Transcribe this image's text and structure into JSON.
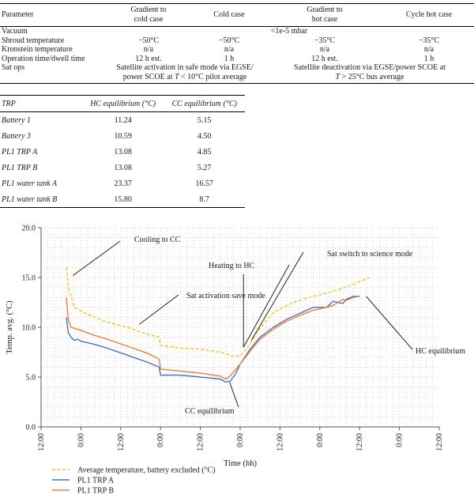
{
  "table1": {
    "headers": [
      "Parameter",
      "Gradient to\ncold case",
      "Cold case",
      "Gradient to\nhot case",
      "Cycle hot case"
    ],
    "vacuum": {
      "label": "Vacuum",
      "value": "<1e-5 mbar"
    },
    "rows": [
      {
        "label": "Shroud temperature",
        "cells": [
          "−50°C",
          "−50°C",
          "−35°C",
          "−35°C"
        ]
      },
      {
        "label": "Kronstein temperature",
        "cells": [
          "n/a",
          "n/a",
          "n/a",
          "n/a"
        ]
      },
      {
        "label": "Operation time/dwell time",
        "cells": [
          "12 h est.",
          "1 h",
          "12 h est.",
          "1 h"
        ]
      }
    ],
    "satops": {
      "label": "Sat ops",
      "cold_line1": "Satellite activation in safe mode via EGSE/",
      "cold_line2_a": "power SCOE  at ",
      "cold_line2_t": "T",
      "cold_line2_b": " < 10°C pilot average",
      "hot_line1": "Satellite deactivation via EGSE/power SCOE at",
      "hot_line2_t": "T",
      "hot_line2_b": " > 25°C bus average"
    }
  },
  "table2": {
    "headers": [
      "TRP",
      "HC equilibrium (°C)",
      "CC equilibrium (°C)"
    ],
    "rows": [
      {
        "name": "Battery 1",
        "hc": "11.24",
        "cc": "5.15"
      },
      {
        "name": "Battery 3",
        "hc": "10.59",
        "cc": "4.50"
      },
      {
        "name": "PL1 TRP A",
        "hc": "13.08",
        "cc": "4.85"
      },
      {
        "name": "PL1 TRP B",
        "hc": "13.08",
        "cc": "5.27"
      },
      {
        "name": "PL1 water tank A",
        "hc": "23.37",
        "cc": "16.57"
      },
      {
        "name": "PL1 water tank B",
        "hc": "15.80",
        "cc": "8.7"
      }
    ]
  },
  "chart_data": {
    "type": "line",
    "xlabel": "Time (hh)",
    "ylabel": "Temp. avg. (°C)",
    "ylim": [
      0,
      20
    ],
    "xlim": [
      0,
      60
    ],
    "yticks": [
      0,
      5,
      10,
      15,
      20
    ],
    "ytick_labels": [
      "0.0",
      "5.0",
      "10.0",
      "15.0",
      "20.0"
    ],
    "xticks": [
      0,
      6,
      12,
      18,
      24,
      30,
      36,
      42,
      48,
      54,
      60
    ],
    "xtick_labels": [
      "12:00",
      "0:00",
      "12:00",
      "0:00",
      "12:00",
      "0:00",
      "12:00",
      "0:00",
      "12:00",
      "0:00",
      "12:00"
    ],
    "grid": true,
    "legend_position": "bottom-left",
    "series": [
      {
        "name": "Average temperature, battery excluded (°C)",
        "color": "#f5c518",
        "dash": true,
        "x": [
          3.8,
          4.2,
          5,
          7,
          10,
          13,
          16,
          17.8,
          18,
          21,
          24,
          27,
          29,
          30,
          31.5,
          32.5,
          35,
          38,
          41,
          44,
          47,
          49.5
        ],
        "y": [
          16.0,
          13.8,
          12.0,
          11.3,
          10.5,
          10.0,
          9.3,
          9.0,
          8.2,
          7.9,
          7.8,
          7.5,
          7.1,
          7.1,
          8.3,
          9.5,
          11.5,
          12.5,
          13.1,
          13.6,
          14.3,
          15.0
        ]
      },
      {
        "name": "PL1 TRP A",
        "color": "#4472c4",
        "dash": false,
        "x": [
          3.8,
          4.1,
          4.5,
          5,
          5.5,
          6,
          8,
          10,
          13,
          16,
          17.8,
          18,
          21,
          24,
          27,
          27.8,
          28.5,
          29.3,
          30,
          31.5,
          33,
          35,
          37,
          39,
          41,
          43,
          44,
          45.5,
          46,
          47,
          48
        ],
        "y": [
          11.0,
          9.5,
          9.0,
          8.7,
          8.8,
          8.6,
          8.3,
          7.9,
          7.2,
          6.5,
          6.0,
          5.2,
          5.2,
          5.0,
          4.8,
          4.5,
          4.6,
          5.3,
          6.3,
          7.8,
          9.0,
          10.0,
          10.8,
          11.4,
          12.0,
          12.0,
          12.6,
          12.4,
          12.8,
          13.1,
          13.1
        ]
      },
      {
        "name": "PL1 TRP B",
        "color": "#ed7d31",
        "dash": false,
        "x": [
          3.8,
          4.1,
          4.5,
          6,
          8,
          10,
          13,
          16,
          17.8,
          18,
          21,
          24,
          27,
          27.8,
          28.3,
          29,
          30,
          31.5,
          33,
          35,
          37,
          39,
          41,
          43,
          44,
          45.5,
          46,
          47,
          48
        ],
        "y": [
          13.0,
          10.8,
          10.0,
          9.7,
          9.2,
          8.8,
          8.1,
          7.4,
          6.8,
          5.8,
          5.6,
          5.4,
          5.1,
          4.8,
          5.0,
          5.5,
          6.3,
          7.6,
          8.8,
          9.8,
          10.6,
          11.2,
          11.7,
          12.0,
          12.2,
          12.8,
          12.7,
          13.0,
          13.1
        ]
      }
    ],
    "annotations": [
      {
        "text": "Cooling to CC",
        "x": 4.8,
        "y": 15.2
      },
      {
        "text": "Sat activation save mode",
        "x": 14.8,
        "y": 10.3
      },
      {
        "text": "Heating to HC",
        "x": 30.5,
        "y": 8.0
      },
      {
        "text": "Sat switch to science mode",
        "x": 31.7,
        "y": 8.7
      },
      {
        "text": "CC equilibrium",
        "x": 28.4,
        "y": 4.5
      },
      {
        "text": "HC equilibrium",
        "x": 49.0,
        "y": 13.1
      }
    ]
  }
}
